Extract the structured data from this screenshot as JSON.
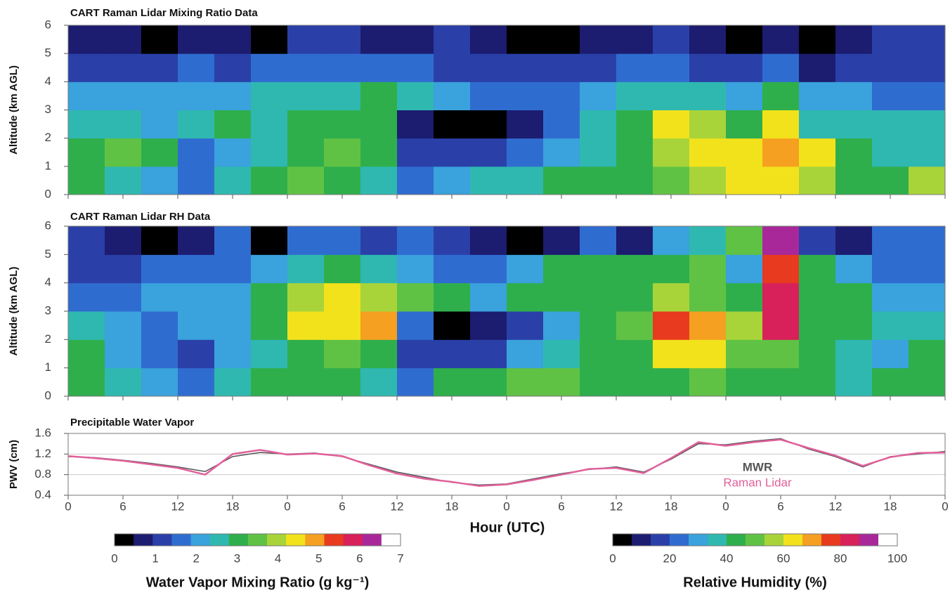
{
  "chart_data": [
    {
      "type": "heatmap",
      "title": "CART Raman Lidar Mixing Ratio Data",
      "ylabel": "Altitude (km AGL)",
      "ylim": [
        0,
        6
      ],
      "yticks": [
        0,
        1,
        2,
        3,
        4,
        5,
        6
      ],
      "xbins": [
        0,
        4,
        8,
        12,
        16,
        20,
        24,
        28,
        32,
        36,
        40,
        44,
        48,
        52,
        56,
        60,
        64,
        68,
        72,
        76,
        80,
        84,
        88,
        92,
        96
      ],
      "ybins": [
        0,
        1,
        2,
        3,
        4,
        5,
        6
      ],
      "z": [
        [
          3.0,
          2.5,
          2.2,
          1.8,
          2.5,
          3.2,
          3.4,
          3.0,
          2.6,
          1.5,
          2.0,
          2.4,
          2.8,
          3.0,
          3.0,
          3.2,
          3.5,
          4.0,
          4.2,
          4.5,
          4.0,
          3.2,
          3.0,
          3.8
        ],
        [
          3.0,
          3.6,
          3.2,
          1.5,
          2.2,
          2.8,
          3.2,
          3.6,
          3.0,
          1.0,
          1.0,
          1.2,
          1.8,
          2.2,
          2.5,
          3.0,
          3.8,
          4.6,
          4.3,
          4.8,
          4.2,
          3.0,
          2.5,
          2.8
        ],
        [
          2.5,
          2.4,
          2.2,
          2.8,
          3.0,
          2.6,
          2.9,
          3.0,
          3.0,
          0.6,
          0.3,
          0.3,
          0.6,
          1.5,
          2.5,
          3.0,
          4.4,
          4.0,
          3.2,
          4.4,
          2.8,
          2.6,
          2.5,
          2.5
        ],
        [
          2.0,
          2.0,
          2.2,
          2.2,
          2.0,
          2.4,
          2.8,
          2.8,
          3.0,
          2.6,
          2.2,
          1.8,
          1.8,
          1.8,
          2.0,
          2.4,
          2.8,
          2.6,
          2.2,
          3.0,
          2.2,
          2.0,
          1.8,
          1.8
        ],
        [
          1.2,
          1.0,
          1.3,
          1.5,
          1.4,
          1.6,
          1.5,
          1.8,
          1.6,
          1.5,
          1.2,
          1.1,
          1.2,
          1.2,
          1.4,
          1.5,
          1.6,
          1.2,
          1.4,
          1.8,
          0.8,
          1.0,
          1.2,
          1.2
        ],
        [
          0.8,
          0.5,
          0.3,
          0.6,
          0.8,
          0.3,
          1.0,
          1.0,
          0.8,
          0.9,
          1.0,
          0.6,
          0.3,
          0.4,
          0.8,
          0.5,
          1.0,
          0.8,
          0.2,
          0.6,
          0.2,
          0.8,
          1.2,
          1.0
        ]
      ],
      "colorbar": {
        "label": "Water Vapor Mixing Ratio (g kg⁻¹)",
        "lim": [
          0,
          7
        ],
        "ticks": [
          0,
          1,
          2,
          3,
          4,
          5,
          6,
          7
        ],
        "colors": [
          "#000000",
          "#1c1c70",
          "#2a40a8",
          "#2f6cd0",
          "#3aa2dc",
          "#2fb8b0",
          "#2faf4c",
          "#60c244",
          "#a8d43a",
          "#f2e21c",
          "#f5a020",
          "#e83a1e",
          "#d8205a",
          "#a8289a",
          "#ffffff"
        ]
      }
    },
    {
      "type": "heatmap",
      "title": "CART Raman Lidar RH Data",
      "ylabel": "Altitude (km AGL)",
      "ylim": [
        0,
        6
      ],
      "yticks": [
        0,
        1,
        2,
        3,
        4,
        5,
        6
      ],
      "xbins": [
        0,
        4,
        8,
        12,
        16,
        20,
        24,
        28,
        32,
        36,
        40,
        44,
        48,
        52,
        56,
        60,
        64,
        68,
        72,
        76,
        80,
        84,
        88,
        92,
        96
      ],
      "ybins": [
        0,
        1,
        2,
        3,
        4,
        5,
        6
      ],
      "z": [
        [
          40,
          35,
          30,
          25,
          35,
          40,
          45,
          42,
          35,
          25,
          40,
          45,
          50,
          48,
          45,
          45,
          45,
          50,
          45,
          42,
          40,
          35,
          40,
          45
        ],
        [
          45,
          30,
          20,
          18,
          30,
          35,
          45,
          50,
          42,
          15,
          15,
          18,
          30,
          38,
          40,
          45,
          60,
          62,
          50,
          48,
          45,
          38,
          30,
          40
        ],
        [
          35,
          28,
          25,
          30,
          32,
          40,
          60,
          65,
          72,
          20,
          5,
          8,
          15,
          30,
          40,
          48,
          75,
          68,
          55,
          85,
          45,
          40,
          35,
          35
        ],
        [
          25,
          25,
          28,
          30,
          30,
          40,
          55,
          60,
          55,
          50,
          40,
          30,
          40,
          45,
          42,
          45,
          55,
          50,
          40,
          85,
          45,
          40,
          30,
          30
        ],
        [
          18,
          15,
          20,
          22,
          25,
          30,
          35,
          40,
          38,
          30,
          25,
          20,
          30,
          40,
          40,
          40,
          45,
          50,
          30,
          75,
          40,
          30,
          25,
          25
        ],
        [
          15,
          10,
          5,
          10,
          20,
          5,
          20,
          20,
          15,
          20,
          18,
          10,
          5,
          10,
          20,
          10,
          30,
          35,
          50,
          90,
          15,
          10,
          20,
          20
        ]
      ],
      "colorbar": {
        "label": "Relative Humidity (%)",
        "lim": [
          0,
          100
        ],
        "ticks": [
          0,
          20,
          40,
          60,
          80,
          100
        ],
        "colors": [
          "#000000",
          "#1c1c70",
          "#2a40a8",
          "#2f6cd0",
          "#3aa2dc",
          "#2fb8b0",
          "#2faf4c",
          "#60c244",
          "#a8d43a",
          "#f2e21c",
          "#f5a020",
          "#e83a1e",
          "#d8205a",
          "#a8289a",
          "#ffffff"
        ]
      }
    },
    {
      "type": "line",
      "title": "Precipitable Water Vapor",
      "ylabel": "PWV (cm)",
      "xlabel": "Hour (UTC)",
      "xlim": [
        0,
        96
      ],
      "ylim": [
        0.4,
        1.6
      ],
      "yticks": [
        0.4,
        0.8,
        1.2,
        1.6
      ],
      "xticks": [
        0,
        6,
        12,
        18,
        {
          "value": 24,
          "label": "0"
        },
        {
          "value": 30,
          "label": "6"
        },
        {
          "value": 36,
          "label": "12"
        },
        {
          "value": 42,
          "label": "18"
        },
        {
          "value": 48,
          "label": "0"
        },
        {
          "value": 54,
          "label": "6"
        },
        {
          "value": 60,
          "label": "12"
        },
        {
          "value": 66,
          "label": "18"
        },
        {
          "value": 72,
          "label": "0"
        },
        {
          "value": 78,
          "label": "6"
        },
        {
          "value": 84,
          "label": "12"
        },
        {
          "value": 90,
          "label": "18"
        },
        {
          "value": 96,
          "label": "0"
        }
      ],
      "x": [
        0,
        3,
        6,
        9,
        12,
        15,
        18,
        21,
        24,
        27,
        30,
        33,
        36,
        39,
        42,
        45,
        48,
        51,
        54,
        57,
        60,
        63,
        66,
        69,
        72,
        75,
        78,
        81,
        84,
        87,
        90,
        93,
        96
      ],
      "series": [
        {
          "name": "MWR",
          "color": "#555555",
          "values": [
            1.15,
            1.13,
            1.08,
            1.02,
            0.95,
            0.86,
            1.15,
            1.23,
            1.2,
            1.22,
            1.15,
            1.0,
            0.85,
            0.75,
            0.65,
            0.6,
            0.62,
            0.72,
            0.82,
            0.9,
            0.95,
            0.85,
            1.1,
            1.4,
            1.38,
            1.45,
            1.5,
            1.3,
            1.15,
            0.95,
            1.15,
            1.2,
            1.25
          ]
        },
        {
          "name": "Raman Lidar",
          "color": "#e0609a",
          "values": [
            1.16,
            1.12,
            1.07,
            1.0,
            0.93,
            0.8,
            1.2,
            1.28,
            1.19,
            1.21,
            1.16,
            0.98,
            0.82,
            0.72,
            0.66,
            0.58,
            0.61,
            0.7,
            0.8,
            0.91,
            0.93,
            0.83,
            1.12,
            1.43,
            1.36,
            1.43,
            1.48,
            1.32,
            1.17,
            0.97,
            1.14,
            1.22,
            1.23
          ]
        }
      ]
    }
  ]
}
